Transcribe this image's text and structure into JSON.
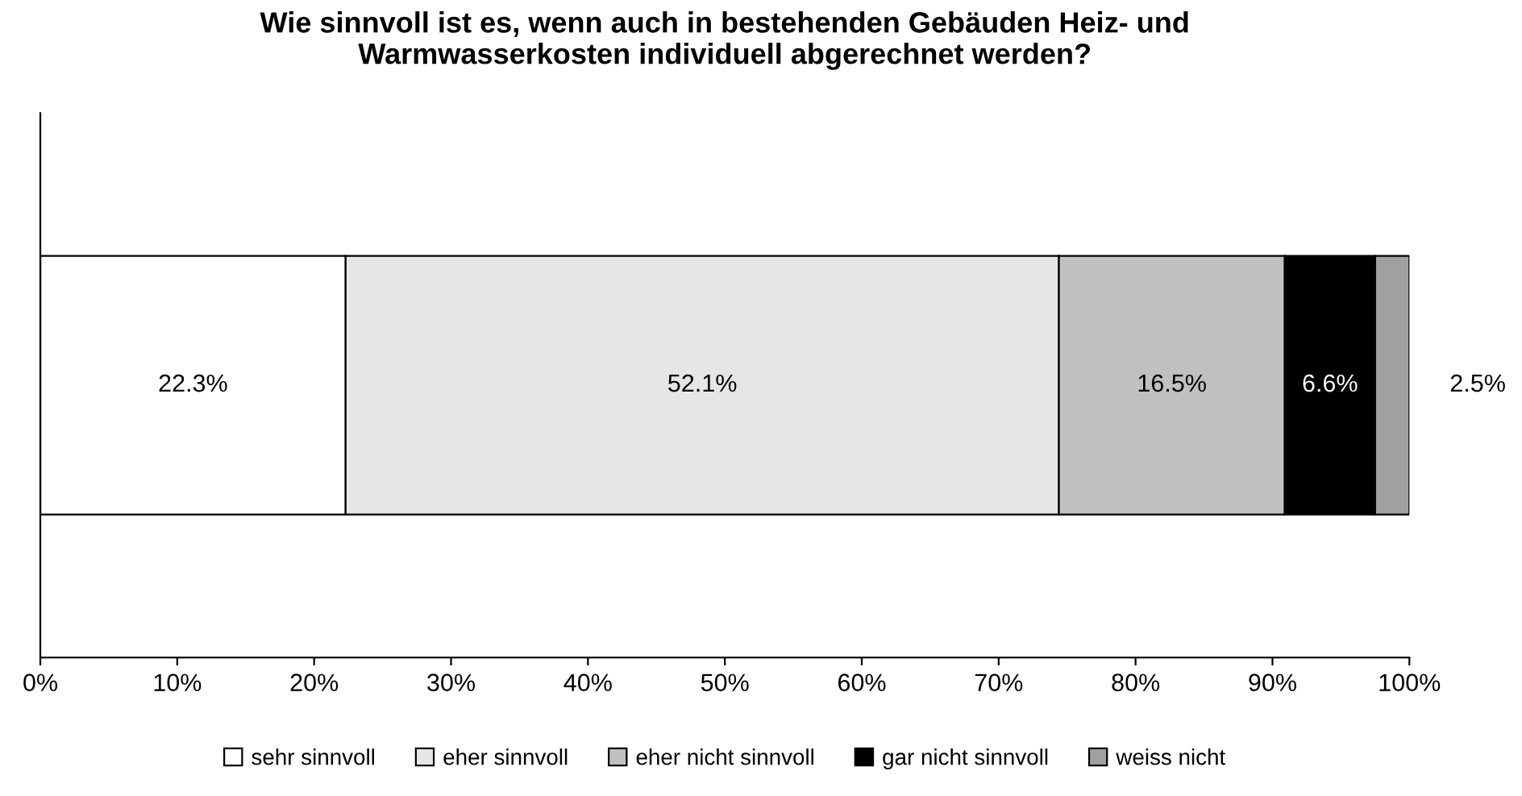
{
  "chart_data": {
    "type": "bar",
    "orientation": "horizontal",
    "stacked": true,
    "title": "Wie sinnvoll ist es, wenn auch in bestehenden Gebäuden Heiz- und\nWarmwasserkosten individuell abgerechnet werden?",
    "categories": [
      null
    ],
    "series": [
      {
        "name": "sehr sinnvoll",
        "color": "#ffffff",
        "values": [
          22.3
        ],
        "value_labels": [
          "22.3%"
        ]
      },
      {
        "name": "eher sinnvoll",
        "color": "#e6e6e6",
        "values": [
          52.1
        ],
        "value_labels": [
          "52.1%"
        ]
      },
      {
        "name": "eher nicht sinnvoll",
        "color": "#c0c0c0",
        "values": [
          16.5
        ],
        "value_labels": [
          "16.5%"
        ]
      },
      {
        "name": "gar nicht sinnvoll",
        "color": "#000000",
        "values": [
          6.6
        ],
        "value_labels": [
          "6.6%"
        ]
      },
      {
        "name": "weiss nicht",
        "color": "#a0a0a0",
        "values": [
          2.5
        ],
        "value_labels": [
          "2.5%"
        ]
      }
    ],
    "xlim": [
      0,
      100
    ],
    "xticks": [
      {
        "value": 0,
        "label": "0%"
      },
      {
        "value": 10,
        "label": "10%"
      },
      {
        "value": 20,
        "label": "20%"
      },
      {
        "value": 30,
        "label": "30%"
      },
      {
        "value": 40,
        "label": "40%"
      },
      {
        "value": 50,
        "label": "50%"
      },
      {
        "value": 60,
        "label": "60%"
      },
      {
        "value": 70,
        "label": "70%"
      },
      {
        "value": 80,
        "label": "80%"
      },
      {
        "value": 90,
        "label": "90%"
      },
      {
        "value": 100,
        "label": "100%"
      }
    ],
    "grid": false,
    "legend": "bottom"
  }
}
